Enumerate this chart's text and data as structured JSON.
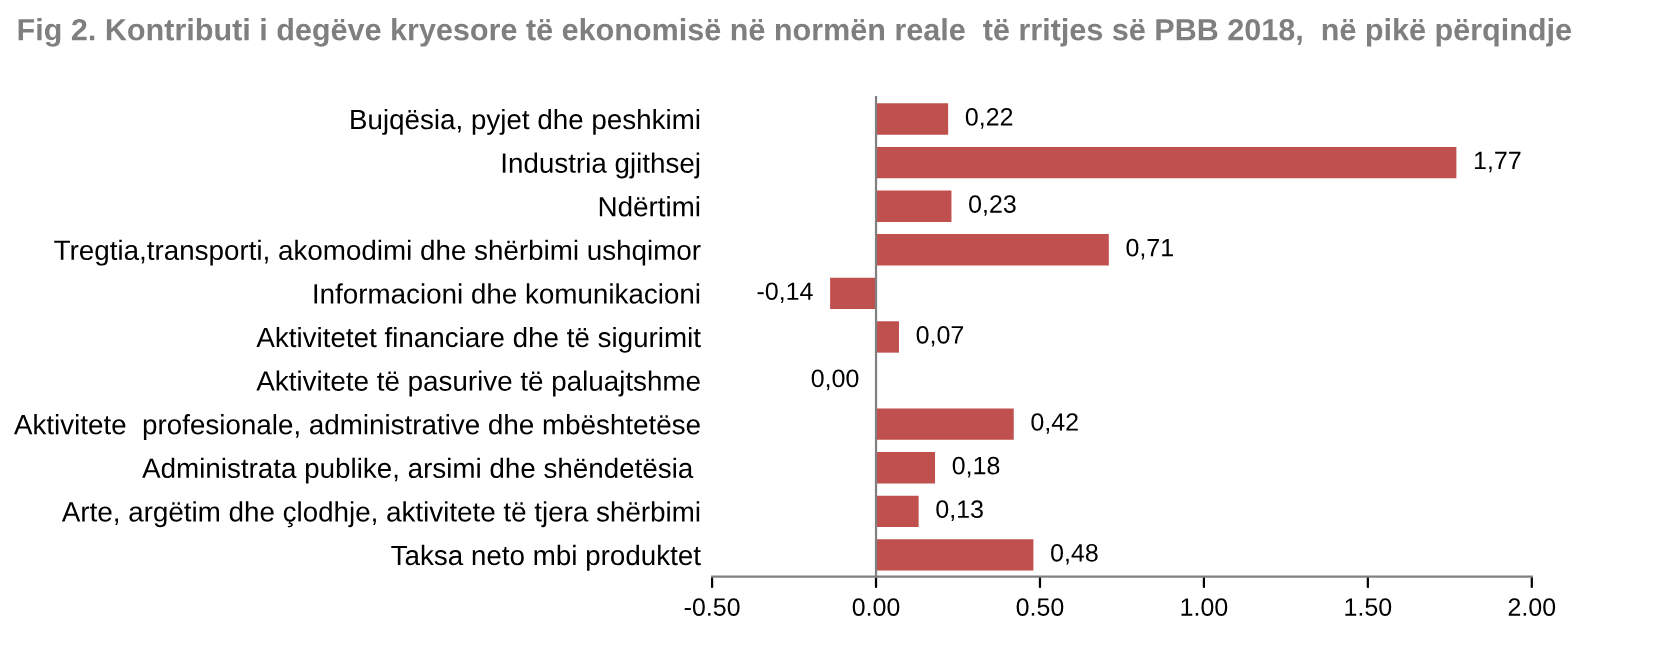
{
  "chart_data": {
    "type": "bar",
    "orientation": "horizontal",
    "title": "Fig 2. Kontributi i degëve kryesore të ekonomisë në normën reale  të rritjes së PBB 2018,  në pikë përqindje",
    "categories": [
      "Bujqësia, pyjet dhe peshkimi",
      "Industria gjithsej",
      "Ndërtimi",
      "Tregtia,transporti, akomodimi dhe shërbimi ushqimor",
      "Informacioni dhe komunikacioni",
      "Aktivitetet financiare dhe të sigurimit",
      "Aktivitete të pasurive të paluajtshme",
      "Aktivitete  profesionale, administrative dhe mbështetëse",
      "Administrata publike, arsimi dhe shëndetësia ",
      "Arte, argëtim dhe çlodhje, aktivitete të tjera shërbimi",
      "Taksa neto mbi produktet"
    ],
    "values": [
      0.22,
      1.77,
      0.23,
      0.71,
      -0.14,
      0.07,
      0.0,
      0.42,
      0.18,
      0.13,
      0.48
    ],
    "value_labels": [
      "0,22",
      "1,77",
      "0,23",
      "0,71",
      "-0,14",
      "0,07",
      "0,00",
      "0,42",
      "0,18",
      "0,13",
      "0,48"
    ],
    "color": "#c0504d",
    "xlim": [
      -0.5,
      2.0
    ],
    "xticks": [
      {
        "value": -0.5,
        "label": "-0.50"
      },
      {
        "value": 0,
        "label": "0.00"
      },
      {
        "value": 0.5,
        "label": "0.50"
      },
      {
        "value": 1.0,
        "label": "1.00"
      },
      {
        "value": 1.5,
        "label": "1.50"
      },
      {
        "value": 2.0,
        "label": "2.00"
      }
    ],
    "legend": false
  }
}
